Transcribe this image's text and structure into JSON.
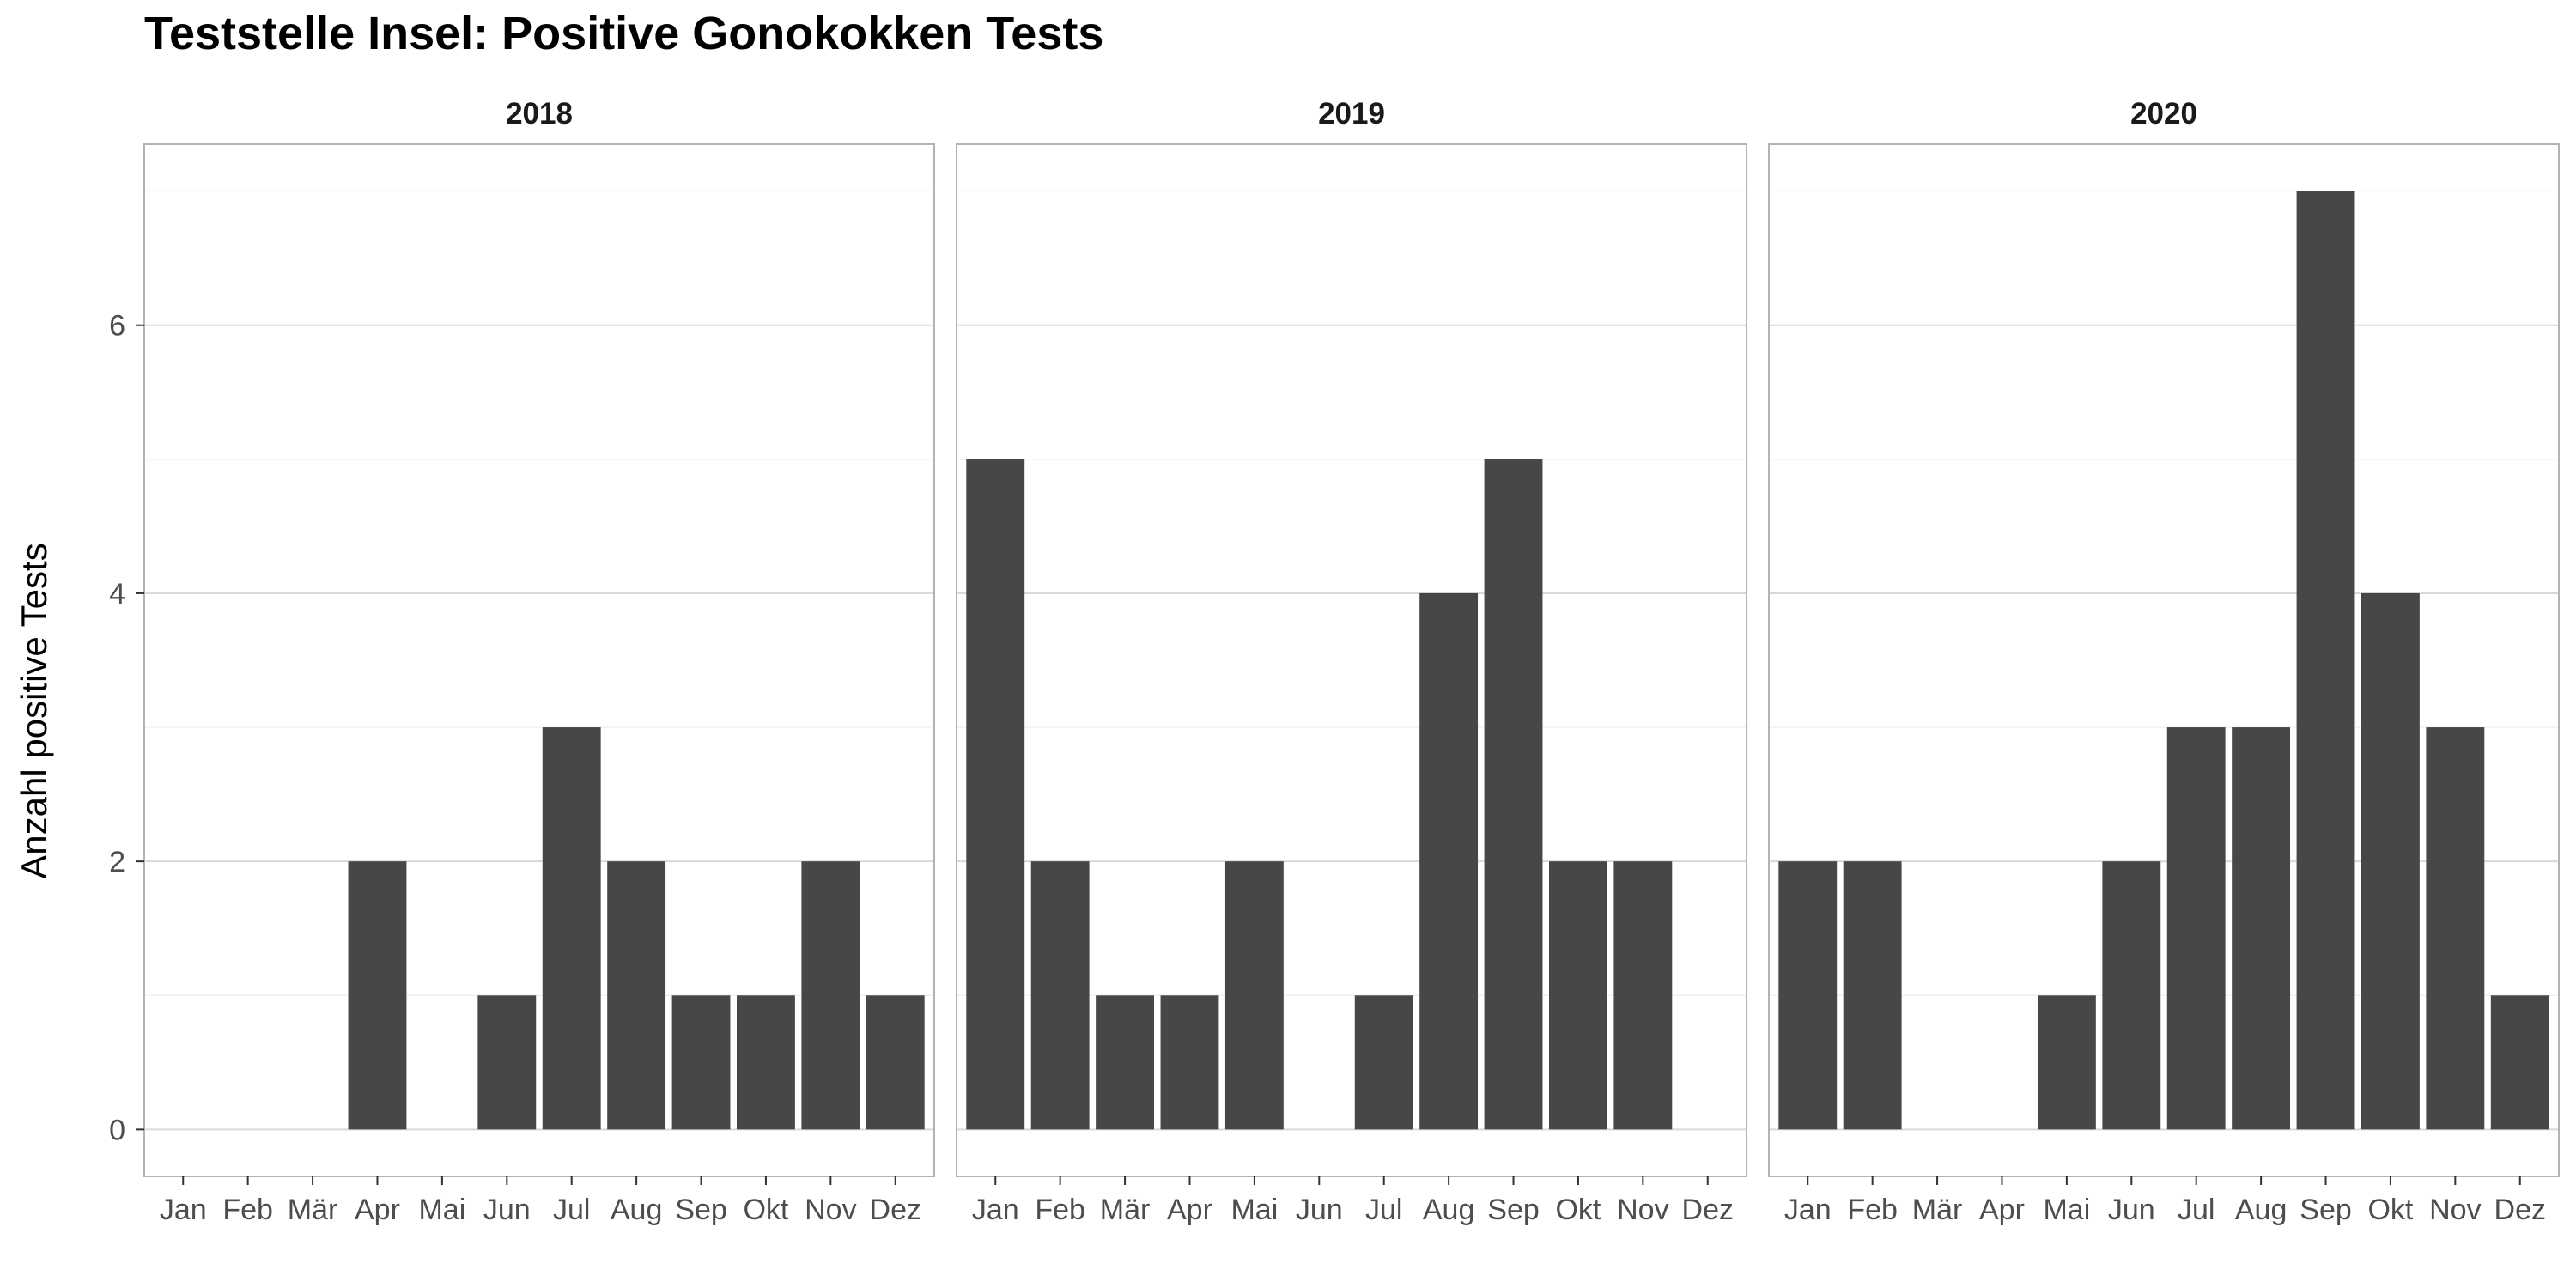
{
  "chart_data": {
    "type": "bar",
    "title": "Teststelle Insel: Positive Gonokokken Tests",
    "xlabel": "",
    "ylabel": "Anzahl positive Tests",
    "ylim": [
      -0.35,
      7.35
    ],
    "y_ticks": [
      0,
      2,
      4,
      6
    ],
    "grid": true,
    "categories": [
      "Jan",
      "Feb",
      "Mär",
      "Apr",
      "Mai",
      "Jun",
      "Jul",
      "Aug",
      "Sep",
      "Okt",
      "Nov",
      "Dez"
    ],
    "bar_color": "#474747",
    "panels": [
      {
        "name": "2018",
        "values": [
          0,
          0,
          0,
          2,
          0,
          1,
          3,
          2,
          1,
          1,
          2,
          1
        ]
      },
      {
        "name": "2019",
        "values": [
          5,
          2,
          1,
          1,
          2,
          0,
          1,
          4,
          5,
          2,
          2,
          0
        ]
      },
      {
        "name": "2020",
        "values": [
          2,
          2,
          0,
          0,
          1,
          2,
          3,
          3,
          7,
          4,
          3,
          1
        ]
      }
    ]
  }
}
